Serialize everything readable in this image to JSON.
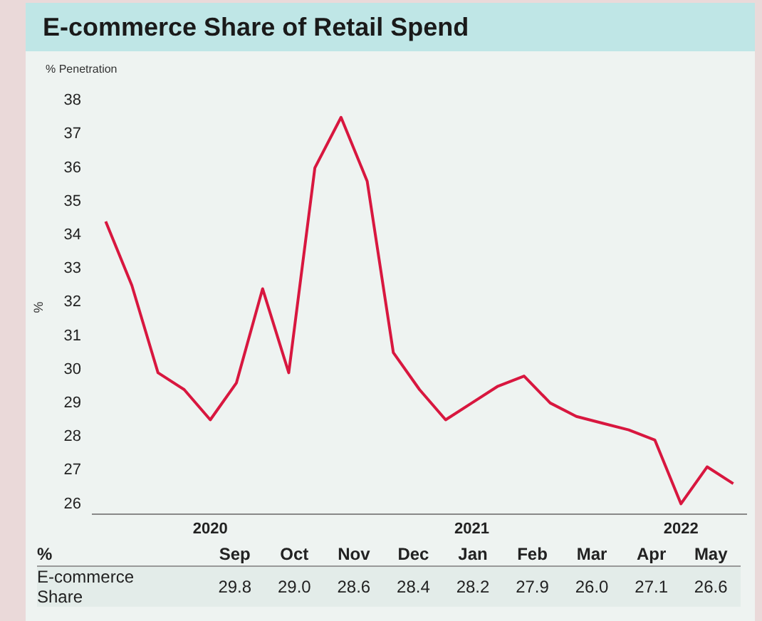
{
  "chart_data": [
    {
      "type": "line",
      "title": "E-commerce Share of Retail Spend",
      "subtitle": "% Penetration",
      "ylabel": "%",
      "color": "#d8173f",
      "categories": [
        null,
        null,
        null,
        null,
        "2020",
        null,
        null,
        null,
        null,
        null,
        null,
        null,
        null,
        null,
        "2021",
        null,
        null,
        null,
        null,
        null,
        null,
        null,
        "2022",
        null,
        null
      ],
      "values": [
        34.4,
        32.5,
        29.9,
        29.4,
        28.5,
        29.6,
        32.4,
        29.9,
        36.0,
        37.5,
        35.6,
        30.5,
        29.4,
        28.5,
        29.0,
        29.5,
        29.8,
        29.0,
        28.6,
        28.4,
        28.2,
        27.9,
        26.0,
        27.1,
        26.6
      ],
      "ylim": [
        25.7,
        38
      ],
      "yticks": [
        26,
        27,
        28,
        29,
        30,
        31,
        32,
        33,
        34,
        35,
        36,
        37,
        38
      ],
      "grid": false,
      "legend": false,
      "marker": "none",
      "line_style": "solid"
    },
    {
      "type": "other",
      "categories": [
        "Sep",
        "Oct",
        "Nov",
        "Dec",
        "Jan",
        "Feb",
        "Mar",
        "Apr",
        "May"
      ],
      "values": [
        29.8,
        29.0,
        28.6,
        28.4,
        28.2,
        27.9,
        26.0,
        27.1,
        26.6
      ],
      "value_labels": [
        "29.8",
        "29.0",
        "28.6",
        "28.4",
        "28.2",
        "27.9",
        "26.0",
        "27.1",
        "26.6"
      ],
      "annotations": [
        "%",
        "E-commerce Share"
      ]
    }
  ]
}
